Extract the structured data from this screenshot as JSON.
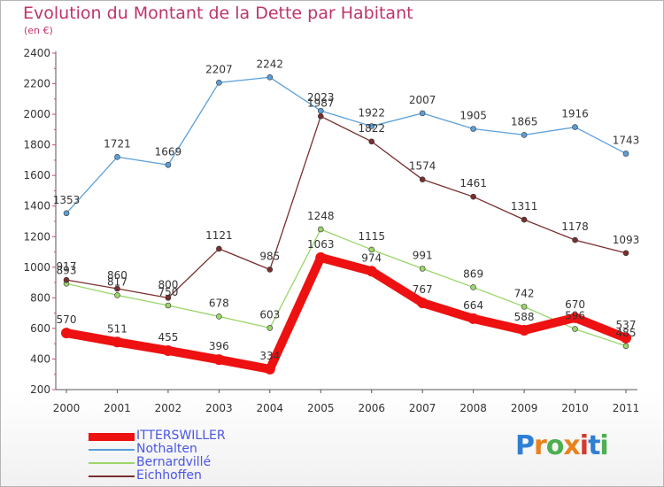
{
  "title": "Evolution du Montant de la Dette par Habitant",
  "subtitle": "(en €)",
  "logo": {
    "text": "Proxiti"
  },
  "chart_data": {
    "type": "line",
    "title": "Evolution du Montant de la Dette par Habitant",
    "subtitle": "(en €)",
    "x": [
      "2000",
      "2001",
      "2002",
      "2003",
      "2004",
      "2005",
      "2006",
      "2007",
      "2008",
      "2009",
      "2010",
      "2011"
    ],
    "ylim": [
      200,
      2400
    ],
    "yticks": [
      200,
      400,
      600,
      800,
      1000,
      1200,
      1400,
      1600,
      1800,
      2000,
      2200,
      2400
    ],
    "grid": false,
    "legend_position": "bottom-left",
    "series": [
      {
        "name": "ITTERSWILLER",
        "color": "#ee1111",
        "values": [
          570,
          511,
          455,
          396,
          334,
          1063,
          974,
          767,
          664,
          588,
          670,
          537
        ]
      },
      {
        "name": "Nothalten",
        "color": "#5a9fd8",
        "values": [
          1353,
          1721,
          1669,
          2207,
          2242,
          2023,
          1922,
          2007,
          1905,
          1865,
          1916,
          1743
        ]
      },
      {
        "name": "Bernardvillé",
        "color": "#9bd66a",
        "values": [
          893,
          817,
          750,
          678,
          603,
          1248,
          1115,
          991,
          869,
          742,
          596,
          485
        ]
      },
      {
        "name": "Eichhoffen",
        "color": "#7a2e2e",
        "values": [
          917,
          860,
          800,
          1121,
          985,
          1987,
          1822,
          1574,
          1461,
          1311,
          1178,
          1093
        ]
      }
    ]
  }
}
